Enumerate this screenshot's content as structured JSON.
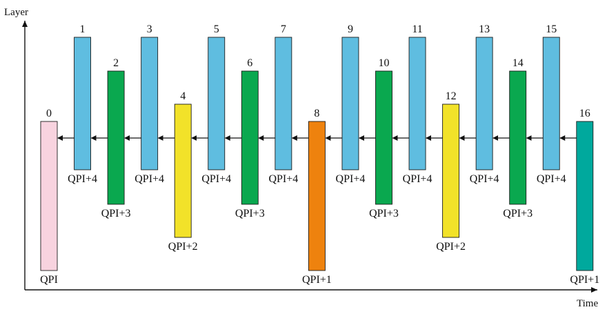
{
  "axes": {
    "y_label": "Layer",
    "x_label": "Time"
  },
  "frames": [
    {
      "id": "0",
      "qp": "QPI",
      "layer": 0,
      "color": "#f8d3df"
    },
    {
      "id": "1",
      "qp": "QPI+4",
      "layer": 4,
      "color": "#5fbde0"
    },
    {
      "id": "2",
      "qp": "QPI+3",
      "layer": 3,
      "color": "#0aa84f"
    },
    {
      "id": "3",
      "qp": "QPI+4",
      "layer": 4,
      "color": "#5fbde0"
    },
    {
      "id": "4",
      "qp": "QPI+2",
      "layer": 2,
      "color": "#f2e229"
    },
    {
      "id": "5",
      "qp": "QPI+4",
      "layer": 4,
      "color": "#5fbde0"
    },
    {
      "id": "6",
      "qp": "QPI+3",
      "layer": 3,
      "color": "#0aa84f"
    },
    {
      "id": "7",
      "qp": "QPI+4",
      "layer": 4,
      "color": "#5fbde0"
    },
    {
      "id": "8",
      "qp": "QPI+1",
      "layer": 1,
      "color": "#ee820e"
    },
    {
      "id": "9",
      "qp": "QPI+4",
      "layer": 4,
      "color": "#5fbde0"
    },
    {
      "id": "10",
      "qp": "QPI+3",
      "layer": 3,
      "color": "#0aa84f"
    },
    {
      "id": "11",
      "qp": "QPI+4",
      "layer": 4,
      "color": "#5fbde0"
    },
    {
      "id": "12",
      "qp": "QPI+2",
      "layer": 2,
      "color": "#f2e229"
    },
    {
      "id": "13",
      "qp": "QPI+4",
      "layer": 4,
      "color": "#5fbde0"
    },
    {
      "id": "14",
      "qp": "QPI+3",
      "layer": 3,
      "color": "#0aa84f"
    },
    {
      "id": "15",
      "qp": "QPI+4",
      "layer": 4,
      "color": "#5fbde0"
    },
    {
      "id": "16",
      "qp": "QPI+1",
      "layer": 1,
      "color": "#00a99d"
    }
  ],
  "arrow_color": "#111111",
  "axis_color": "#111111"
}
